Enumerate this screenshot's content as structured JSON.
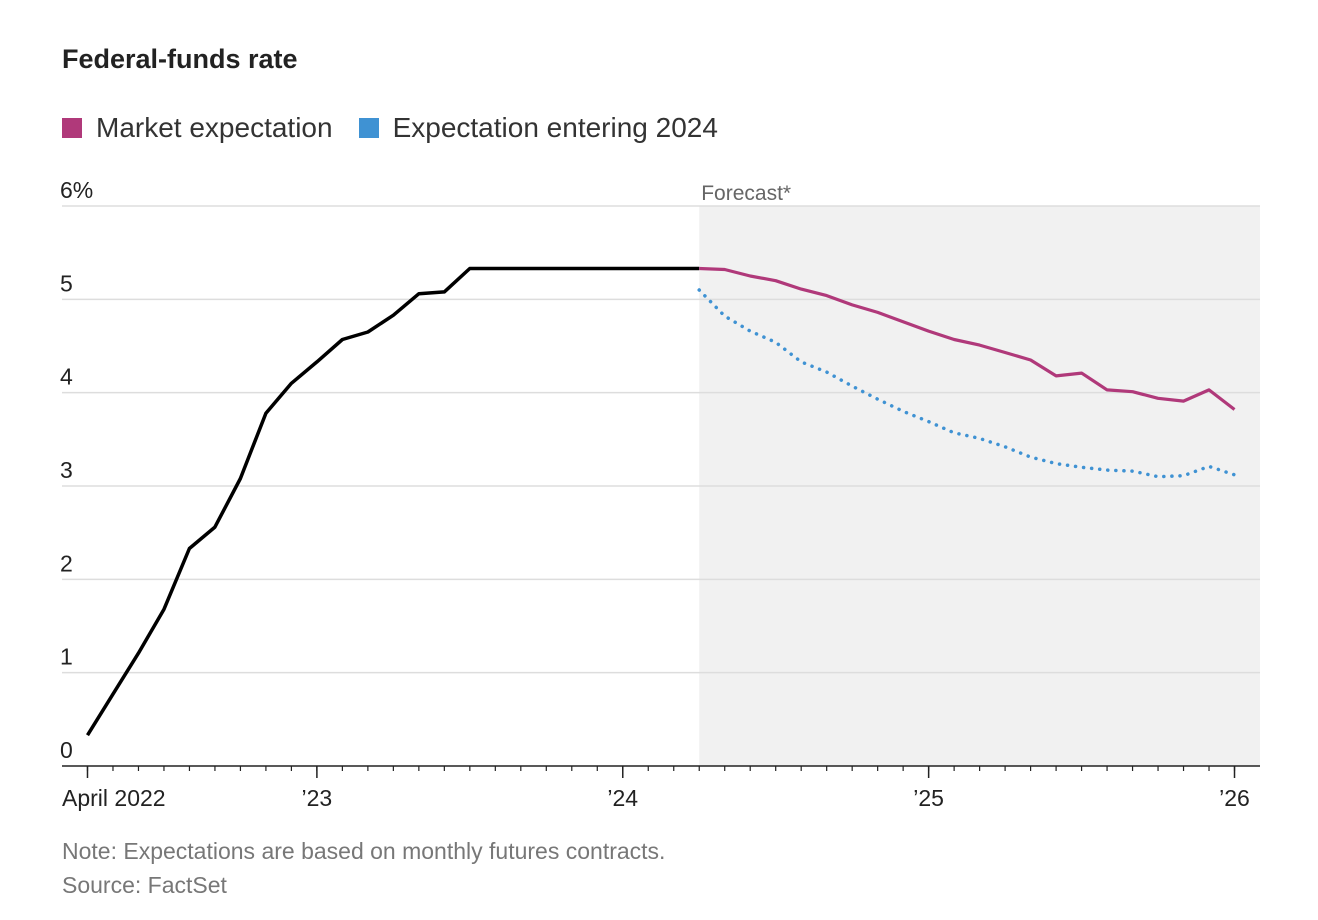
{
  "title": "Federal-funds rate",
  "legend": [
    {
      "label": "Market expectation",
      "color": "#b0397a"
    },
    {
      "label": "Expectation entering 2024",
      "color": "#3f92d3"
    }
  ],
  "forecast_label": "Forecast*",
  "note": "Note: Expectations are based on monthly futures contracts.",
  "source": "Source: FactSet",
  "colors": {
    "actual": "#000000",
    "market": "#b0397a",
    "prior": "#3f92d3",
    "forecast_bg": "#f1f1f1",
    "grid": "#dddddd"
  },
  "chart_data": {
    "type": "line",
    "title": "Federal-funds rate",
    "xlabel": "",
    "ylabel": "",
    "y_ticks": [
      {
        "value": 0,
        "label": "0"
      },
      {
        "value": 1,
        "label": "1"
      },
      {
        "value": 2,
        "label": "2"
      },
      {
        "value": 3,
        "label": "3"
      },
      {
        "value": 4,
        "label": "4"
      },
      {
        "value": 5,
        "label": "5"
      },
      {
        "value": 6,
        "label": "6%"
      }
    ],
    "ylim": [
      0,
      6
    ],
    "x_tick_labels": [
      {
        "date": "2022-04",
        "label": "April 2022"
      },
      {
        "date": "2023-01",
        "label": "’23"
      },
      {
        "date": "2024-01",
        "label": "’24"
      },
      {
        "date": "2025-01",
        "label": "’25"
      },
      {
        "date": "2026-01",
        "label": "’26"
      }
    ],
    "xlim": [
      "2022-03",
      "2026-02"
    ],
    "forecast_start": "2024-04",
    "grid": true,
    "legend_position": "top-left",
    "series": [
      {
        "name": "",
        "role": "actual",
        "style": "solid",
        "points": [
          [
            "2022-04",
            0.33
          ],
          [
            "2022-05",
            0.77
          ],
          [
            "2022-06",
            1.21
          ],
          [
            "2022-07",
            1.68
          ],
          [
            "2022-08",
            2.33
          ],
          [
            "2022-09",
            2.56
          ],
          [
            "2022-10",
            3.08
          ],
          [
            "2022-11",
            3.78
          ],
          [
            "2022-12",
            4.1
          ],
          [
            "2023-01",
            4.33
          ],
          [
            "2023-02",
            4.57
          ],
          [
            "2023-03",
            4.65
          ],
          [
            "2023-04",
            4.83
          ],
          [
            "2023-05",
            5.06
          ],
          [
            "2023-06",
            5.08
          ],
          [
            "2023-07",
            5.33
          ],
          [
            "2023-08",
            5.33
          ],
          [
            "2023-09",
            5.33
          ],
          [
            "2023-10",
            5.33
          ],
          [
            "2023-11",
            5.33
          ],
          [
            "2023-12",
            5.33
          ],
          [
            "2024-01",
            5.33
          ],
          [
            "2024-02",
            5.33
          ],
          [
            "2024-03",
            5.33
          ],
          [
            "2024-04",
            5.33
          ]
        ]
      },
      {
        "name": "Market expectation",
        "role": "market",
        "style": "solid",
        "points": [
          [
            "2024-04",
            5.33
          ],
          [
            "2024-05",
            5.32
          ],
          [
            "2024-06",
            5.25
          ],
          [
            "2024-07",
            5.2
          ],
          [
            "2024-08",
            5.11
          ],
          [
            "2024-09",
            5.04
          ],
          [
            "2024-10",
            4.94
          ],
          [
            "2024-11",
            4.86
          ],
          [
            "2024-12",
            4.76
          ],
          [
            "2025-01",
            4.66
          ],
          [
            "2025-02",
            4.57
          ],
          [
            "2025-03",
            4.51
          ],
          [
            "2025-04",
            4.43
          ],
          [
            "2025-05",
            4.35
          ],
          [
            "2025-06",
            4.18
          ],
          [
            "2025-07",
            4.21
          ],
          [
            "2025-08",
            4.03
          ],
          [
            "2025-09",
            4.01
          ],
          [
            "2025-10",
            3.94
          ],
          [
            "2025-11",
            3.91
          ],
          [
            "2025-12",
            4.03
          ],
          [
            "2026-01",
            3.82
          ]
        ]
      },
      {
        "name": "Expectation entering 2024",
        "role": "prior",
        "style": "dotted",
        "points": [
          [
            "2024-04",
            5.1
          ],
          [
            "2024-05",
            4.82
          ],
          [
            "2024-06",
            4.66
          ],
          [
            "2024-07",
            4.54
          ],
          [
            "2024-08",
            4.33
          ],
          [
            "2024-09",
            4.22
          ],
          [
            "2024-10",
            4.07
          ],
          [
            "2024-11",
            3.93
          ],
          [
            "2024-12",
            3.8
          ],
          [
            "2025-01",
            3.69
          ],
          [
            "2025-02",
            3.57
          ],
          [
            "2025-03",
            3.51
          ],
          [
            "2025-04",
            3.42
          ],
          [
            "2025-05",
            3.31
          ],
          [
            "2025-06",
            3.24
          ],
          [
            "2025-07",
            3.2
          ],
          [
            "2025-08",
            3.17
          ],
          [
            "2025-09",
            3.16
          ],
          [
            "2025-10",
            3.1
          ],
          [
            "2025-11",
            3.11
          ],
          [
            "2025-12",
            3.21
          ],
          [
            "2026-01",
            3.12
          ]
        ]
      }
    ]
  }
}
